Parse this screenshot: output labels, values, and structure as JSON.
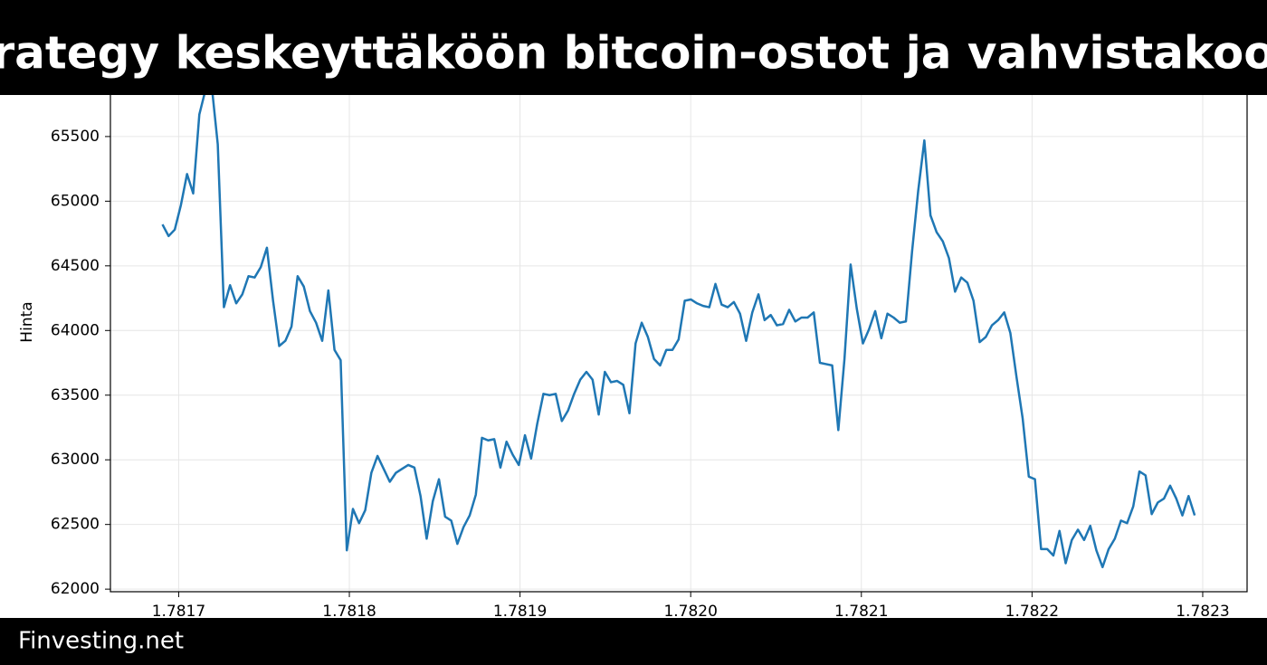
{
  "chart_data": {
    "type": "line",
    "title": "rategy keskeyttäköön bitcoin-ostot ja vahvistakoo",
    "y_label": "Hinta",
    "color": "#1f77b4",
    "grid": true,
    "x": [
      1.7816905,
      1.7816941,
      1.7816977,
      1.7817013,
      1.7817049,
      1.7817085,
      1.7817121,
      1.7817157,
      1.7817193,
      1.7817229,
      1.7817265,
      1.7817301,
      1.7817337,
      1.7817373,
      1.7817409,
      1.7817445,
      1.7817481,
      1.7817517,
      1.7817553,
      1.7817589,
      1.7817625,
      1.7817661,
      1.7817697,
      1.7817733,
      1.7817769,
      1.7817805,
      1.7817841,
      1.7817877,
      1.7817913,
      1.7817949,
      1.7817985,
      1.7818021,
      1.7818057,
      1.7818093,
      1.7818129,
      1.7818165,
      1.7818201,
      1.7818237,
      1.7818273,
      1.7818309,
      1.7818345,
      1.7818381,
      1.7818417,
      1.7818453,
      1.7818489,
      1.7818525,
      1.7818561,
      1.7818597,
      1.7818633,
      1.7818669,
      1.7818705,
      1.7818741,
      1.7818777,
      1.7818813,
      1.7818849,
      1.7818885,
      1.7818921,
      1.7818957,
      1.7818993,
      1.7819029,
      1.7819065,
      1.7819101,
      1.7819137,
      1.7819173,
      1.7819209,
      1.7819245,
      1.7819281,
      1.7819317,
      1.7819353,
      1.7819389,
      1.7819425,
      1.7819461,
      1.7819497,
      1.7819533,
      1.7819569,
      1.7819605,
      1.7819641,
      1.7819677,
      1.7819713,
      1.7819749,
      1.7819785,
      1.7819821,
      1.7819857,
      1.7819893,
      1.7819929,
      1.7819965,
      1.7820001,
      1.7820037,
      1.7820073,
      1.7820109,
      1.7820145,
      1.7820181,
      1.7820217,
      1.7820253,
      1.7820289,
      1.7820325,
      1.7820361,
      1.7820397,
      1.7820433,
      1.7820469,
      1.7820505,
      1.7820541,
      1.7820577,
      1.7820613,
      1.7820649,
      1.7820685,
      1.7820721,
      1.7820757,
      1.7820793,
      1.7820829,
      1.7820865,
      1.7820901,
      1.7820937,
      1.7820973,
      1.7821009,
      1.7821045,
      1.7821081,
      1.7821117,
      1.7821153,
      1.7821189,
      1.7821225,
      1.7821261,
      1.7821297,
      1.7821333,
      1.7821369,
      1.7821405,
      1.7821441,
      1.7821477,
      1.7821513,
      1.7821549,
      1.7821585,
      1.7821621,
      1.7821657,
      1.7821693,
      1.7821729,
      1.7821765,
      1.7821801,
      1.7821837,
      1.7821873,
      1.7821909,
      1.7821945,
      1.7821981,
      1.7822017,
      1.7822053,
      1.7822089,
      1.7822125,
      1.7822161,
      1.7822197,
      1.7822233,
      1.7822269,
      1.7822305,
      1.7822341,
      1.7822377,
      1.7822413,
      1.7822449,
      1.7822485,
      1.7822521,
      1.7822557,
      1.7822593,
      1.7822629,
      1.7822665,
      1.7822701,
      1.7822737,
      1.7822773,
      1.7822809,
      1.7822845,
      1.7822881,
      1.7822917,
      1.7822953
    ],
    "values": [
      64820,
      64730,
      64780,
      64970,
      65210,
      65060,
      65670,
      65860,
      65900,
      65440,
      64180,
      64350,
      64210,
      64280,
      64420,
      64410,
      64490,
      64640,
      64230,
      63880,
      63920,
      64030,
      64420,
      64340,
      64150,
      64060,
      63920,
      64310,
      63850,
      63770,
      62300,
      62620,
      62510,
      62610,
      62900,
      63030,
      62930,
      62830,
      62900,
      62930,
      62960,
      62940,
      62720,
      62390,
      62680,
      62850,
      62560,
      62530,
      62350,
      62480,
      62570,
      62730,
      63170,
      63150,
      63160,
      62940,
      63140,
      63040,
      62960,
      63190,
      63010,
      63280,
      63510,
      63500,
      63510,
      63300,
      63380,
      63510,
      63620,
      63680,
      63620,
      63350,
      63680,
      63600,
      63610,
      63580,
      63360,
      63900,
      64060,
      63950,
      63780,
      63730,
      63850,
      63850,
      63930,
      64230,
      64240,
      64210,
      64190,
      64180,
      64360,
      64200,
      64180,
      64220,
      64130,
      63920,
      64140,
      64280,
      64080,
      64120,
      64040,
      64050,
      64160,
      64070,
      64100,
      64100,
      64140,
      63750,
      63740,
      63730,
      63230,
      63780,
      64510,
      64170,
      63900,
      64010,
      64150,
      63940,
      64130,
      64100,
      64060,
      64070,
      64610,
      65080,
      65470,
      64890,
      64760,
      64690,
      64560,
      64300,
      64410,
      64370,
      64230,
      63910,
      63950,
      64040,
      64080,
      64140,
      63980,
      63640,
      63320,
      62870,
      62850,
      62310,
      62310,
      62260,
      62450,
      62200,
      62380,
      62460,
      62380,
      62490,
      62300,
      62170,
      62310,
      62390,
      62530,
      62510,
      62640,
      62910,
      62880,
      62580,
      62670,
      62700,
      62800,
      62700,
      62570,
      62720,
      62570
    ],
    "xlim": [
      1.78166,
      1.782326
    ],
    "ylim": [
      61980,
      66080
    ],
    "xticks": [
      1.7817,
      1.7818,
      1.7819,
      {
        "value": 1.782,
        "label": "1.7820"
      },
      1.7821,
      1.7822,
      1.7823
    ],
    "yticks": [
      62000,
      62500,
      63000,
      63500,
      64000,
      64500,
      65000,
      65500
    ]
  },
  "footer": {
    "brand": "Finvesting.net"
  }
}
